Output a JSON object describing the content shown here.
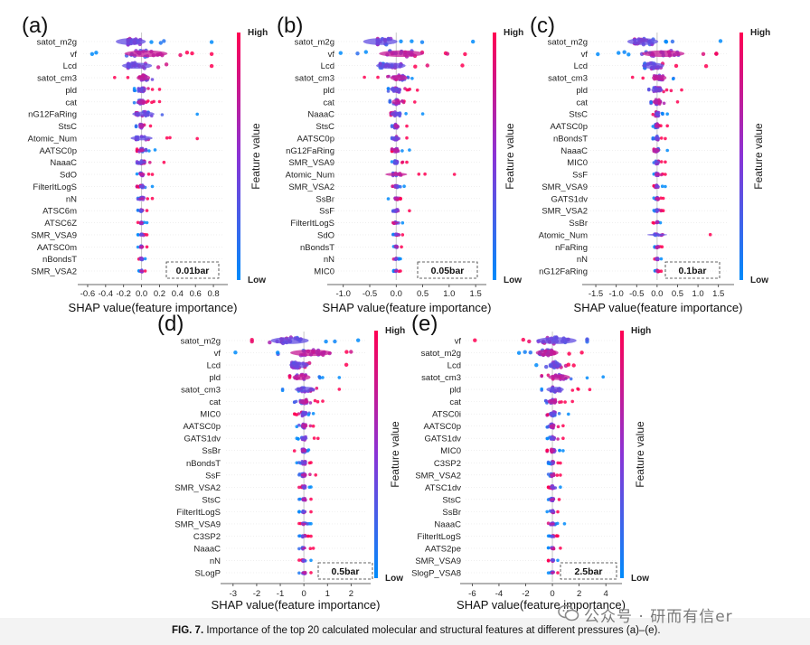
{
  "caption": {
    "label": "FIG. 7.",
    "text": "Importance of the top 20 calculated molecular and structural features at different pressures (a)–(e)."
  },
  "watermark": {
    "text": "公众号 · 研而有信er",
    "icon": "wechat-icon"
  },
  "colors": {
    "high": "#ff0052",
    "low": "#008bfb",
    "mid": "#8a33d6"
  },
  "chart_data": [
    {
      "type": "beeswarm",
      "panel": "(a)",
      "pressure": "0.01bar",
      "xlabel": "SHAP value(feature importance)",
      "ticks": [
        "-0.6",
        "-0.4",
        "-0.2",
        "0.0",
        "0.2",
        "0.4",
        "0.6",
        "0.8"
      ],
      "xlim": [
        -0.65,
        0.9
      ],
      "colorbar": {
        "label": "Feature value",
        "high": "High",
        "low": "Low"
      },
      "features": [
        "satot_m2g",
        "vf",
        "Lcd",
        "satot_cm3",
        "pld",
        "cat",
        "nG12FaRing",
        "StsC",
        "Atomic_Num",
        "AATSC0p",
        "NaaaC",
        "SdO",
        "FilterItLogS",
        "nN",
        "ATSC6m",
        "ATSC6Z",
        "SMR_VSA9",
        "AATSC0m",
        "nBondsT",
        "SMR_VSA2"
      ],
      "spread": [
        [
          -0.15,
          0.78
        ],
        [
          -0.55,
          0.78
        ],
        [
          -0.15,
          0.78
        ],
        [
          -0.3,
          0.12
        ],
        [
          -0.08,
          0.2
        ],
        [
          -0.08,
          0.2
        ],
        [
          -0.06,
          0.62
        ],
        [
          -0.06,
          0.1
        ],
        [
          -0.06,
          0.62
        ],
        [
          -0.05,
          0.15
        ],
        [
          -0.05,
          0.25
        ],
        [
          -0.05,
          0.12
        ],
        [
          -0.05,
          0.12
        ],
        [
          -0.04,
          0.12
        ],
        [
          -0.04,
          0.06
        ],
        [
          -0.04,
          0.06
        ],
        [
          -0.04,
          0.06
        ],
        [
          -0.04,
          0.06
        ],
        [
          -0.03,
          0.04
        ],
        [
          -0.03,
          0.04
        ]
      ],
      "center": [
        -0.12,
        0.05,
        -0.05,
        0.02,
        0.0,
        0.0,
        0.02,
        0.0,
        0.0,
        0.0,
        0.0,
        0.0,
        0.0,
        0.0,
        0.0,
        0.0,
        0.0,
        0.0,
        0.0,
        0.0
      ]
    },
    {
      "type": "beeswarm",
      "panel": "(b)",
      "pressure": "0.05bar",
      "xlabel": "SHAP value(feature importance)",
      "ticks": [
        "-1.0",
        "-0.5",
        "0.0",
        "0.5",
        "1.0",
        "1.5"
      ],
      "xlim": [
        -1.2,
        1.6
      ],
      "colorbar": {
        "label": "Feature value",
        "high": "High",
        "low": "Low"
      },
      "features": [
        "satot_m2g",
        "vf",
        "Lcd",
        "satot_cm3",
        "pld",
        "cat",
        "NaaaC",
        "StsC",
        "AATSC0p",
        "nG12FaRing",
        "SMR_VSA9",
        "Atomic_Num",
        "SMR_VSA2",
        "SsBr",
        "SsF",
        "FilterItLogS",
        "SdO",
        "nBondsT",
        "nN",
        "MIC0"
      ],
      "spread": [
        [
          -0.35,
          1.45
        ],
        [
          -1.05,
          1.3
        ],
        [
          -0.3,
          1.25
        ],
        [
          -0.6,
          0.3
        ],
        [
          -0.15,
          0.4
        ],
        [
          -0.12,
          0.35
        ],
        [
          -0.1,
          0.5
        ],
        [
          -0.08,
          0.2
        ],
        [
          -0.08,
          0.2
        ],
        [
          -0.08,
          0.25
        ],
        [
          -0.08,
          0.2
        ],
        [
          -0.06,
          1.1
        ],
        [
          -0.07,
          0.15
        ],
        [
          -0.15,
          0.08
        ],
        [
          -0.06,
          0.25
        ],
        [
          -0.06,
          0.12
        ],
        [
          -0.06,
          0.12
        ],
        [
          -0.05,
          0.1
        ],
        [
          -0.05,
          0.08
        ],
        [
          -0.05,
          0.08
        ]
      ],
      "center": [
        -0.3,
        0.1,
        -0.1,
        0.05,
        0.0,
        0.0,
        0.0,
        0.0,
        0.0,
        0.0,
        0.0,
        0.0,
        0.0,
        0.0,
        0.0,
        0.0,
        0.0,
        0.0,
        0.0,
        0.0
      ]
    },
    {
      "type": "beeswarm",
      "panel": "(c)",
      "pressure": "0.1bar",
      "xlabel": "SHAP value(feature importance)",
      "ticks": [
        "-1.5",
        "-1.0",
        "-0.5",
        "0.0",
        "0.5",
        "1.0",
        "1.5"
      ],
      "xlim": [
        -1.7,
        1.75
      ],
      "colorbar": {
        "label": "Feature value",
        "high": "High",
        "low": "Low"
      },
      "features": [
        "satot_m2g",
        "vf",
        "Lcd",
        "satot_cm3",
        "pld",
        "cat",
        "StsC",
        "AATSC0p",
        "nBondsT",
        "NaaaC",
        "MIC0",
        "SsF",
        "SMR_VSA9",
        "GATS1dv",
        "SMR_VSA2",
        "SsBr",
        "Atomic_Num",
        "nFaRing",
        "nN",
        "nG12FaRing"
      ],
      "spread": [
        [
          -0.55,
          1.55
        ],
        [
          -1.45,
          1.45
        ],
        [
          -0.3,
          1.2
        ],
        [
          -0.6,
          0.4
        ],
        [
          -0.2,
          0.6
        ],
        [
          -0.15,
          0.5
        ],
        [
          -0.1,
          0.25
        ],
        [
          -0.1,
          0.25
        ],
        [
          -0.1,
          0.2
        ],
        [
          -0.08,
          0.25
        ],
        [
          -0.08,
          0.2
        ],
        [
          -0.08,
          0.2
        ],
        [
          -0.08,
          0.2
        ],
        [
          -0.08,
          0.15
        ],
        [
          -0.08,
          0.15
        ],
        [
          -0.1,
          0.08
        ],
        [
          -0.06,
          1.3
        ],
        [
          -0.06,
          0.12
        ],
        [
          -0.06,
          0.1
        ],
        [
          -0.05,
          0.1
        ]
      ],
      "center": [
        -0.35,
        0.15,
        -0.1,
        0.05,
        0.0,
        0.0,
        0.0,
        0.0,
        0.0,
        0.0,
        0.0,
        0.0,
        0.0,
        0.0,
        0.0,
        0.0,
        0.0,
        0.0,
        0.0,
        0.0
      ]
    },
    {
      "type": "beeswarm",
      "panel": "(d)",
      "pressure": "0.5bar",
      "xlabel": "SHAP value(feature importance)",
      "ticks": [
        "-3",
        "-2",
        "-1",
        "0",
        "1",
        "2"
      ],
      "xlim": [
        -3.3,
        2.6
      ],
      "colorbar": {
        "label": "Feature value",
        "high": "High",
        "low": "Low"
      },
      "features": [
        "satot_m2g",
        "vf",
        "Lcd",
        "pld",
        "satot_cm3",
        "cat",
        "MIC0",
        "AATSC0p",
        "GATS1dv",
        "SsBr",
        "nBondsT",
        "SsF",
        "SMR_VSA2",
        "StsC",
        "FilterItLogS",
        "SMR_VSA9",
        "C3SP2",
        "NaaaC",
        "nN",
        "SLogP"
      ],
      "spread": [
        [
          -2.2,
          2.3
        ],
        [
          -2.9,
          2.0
        ],
        [
          -0.5,
          1.8
        ],
        [
          -0.6,
          1.5
        ],
        [
          -0.9,
          1.5
        ],
        [
          -0.4,
          0.8
        ],
        [
          -0.4,
          0.4
        ],
        [
          -0.3,
          0.4
        ],
        [
          -0.3,
          0.6
        ],
        [
          -0.4,
          0.2
        ],
        [
          -0.3,
          0.3
        ],
        [
          -0.2,
          0.5
        ],
        [
          -0.2,
          0.3
        ],
        [
          -0.2,
          0.3
        ],
        [
          -0.2,
          0.3
        ],
        [
          -0.2,
          0.3
        ],
        [
          -0.2,
          0.3
        ],
        [
          -0.2,
          0.4
        ],
        [
          -0.2,
          0.3
        ],
        [
          -0.2,
          0.3
        ]
      ],
      "center": [
        -0.6,
        0.3,
        -0.2,
        -0.1,
        0.05,
        0.0,
        0.0,
        0.0,
        0.0,
        0.0,
        0.0,
        0.0,
        0.0,
        0.0,
        0.0,
        0.0,
        0.0,
        0.0,
        0.0,
        0.0
      ]
    },
    {
      "type": "beeswarm",
      "panel": "(e)",
      "pressure": "2.5bar",
      "xlabel": "SHAP value(feature importance)",
      "ticks": [
        "-6",
        "-4",
        "-2",
        "0",
        "2",
        "4"
      ],
      "xlim": [
        -6.5,
        4.8
      ],
      "colorbar": {
        "label": "Feature value",
        "high": "High",
        "low": "Low"
      },
      "features": [
        "vf",
        "satot_m2g",
        "Lcd",
        "satot_cm3",
        "pld",
        "cat",
        "ATSC0i",
        "AATSC0p",
        "GATS1dv",
        "MIC0",
        "C3SP2",
        "SMR_VSA2",
        "ATSC1dv",
        "StsC",
        "SsBr",
        "NaaaC",
        "FilterItLogS",
        "AATS2pe",
        "SMR_VSA9",
        "SlogP_VSA8"
      ],
      "spread": [
        [
          -5.8,
          2.6
        ],
        [
          -2.5,
          2.2
        ],
        [
          -1.2,
          1.6
        ],
        [
          -0.8,
          3.8
        ],
        [
          -0.8,
          2.8
        ],
        [
          -0.5,
          1.5
        ],
        [
          -0.4,
          1.2
        ],
        [
          -0.4,
          0.8
        ],
        [
          -0.4,
          0.8
        ],
        [
          -0.4,
          0.8
        ],
        [
          -0.3,
          0.6
        ],
        [
          -0.3,
          0.6
        ],
        [
          -0.3,
          0.6
        ],
        [
          -0.3,
          0.5
        ],
        [
          -0.4,
          0.4
        ],
        [
          -0.3,
          0.9
        ],
        [
          -0.3,
          0.4
        ],
        [
          -0.3,
          0.6
        ],
        [
          -0.3,
          0.4
        ],
        [
          -0.3,
          0.4
        ]
      ],
      "center": [
        0.3,
        -0.4,
        0.2,
        0.5,
        0.2,
        0.0,
        0.0,
        0.0,
        0.0,
        0.0,
        0.0,
        0.0,
        0.0,
        0.0,
        0.0,
        0.0,
        0.0,
        0.0,
        0.0,
        0.0
      ]
    }
  ]
}
